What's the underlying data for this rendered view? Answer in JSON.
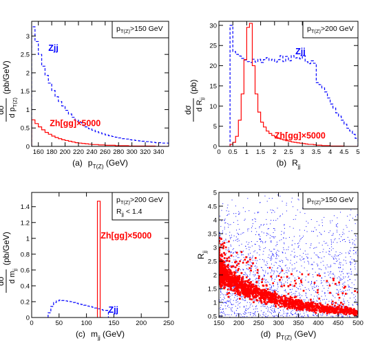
{
  "colors": {
    "zjj": "#0000ff",
    "signal": "#ff0000",
    "axis": "#000000"
  },
  "chart_data": [
    {
      "type": "line",
      "panel_label": "(a)",
      "xlabel": {
        "main": "p",
        "sub": "T(Z)",
        "unit": " (GeV)"
      },
      "ylabel": {
        "num": "dσ",
        "den": "d p",
        "den_sub": "T(Z)",
        "unit": "(pb/GeV)"
      },
      "xlim": [
        150,
        355
      ],
      "ylim": [
        0,
        3.4
      ],
      "xticks": [
        160,
        180,
        200,
        220,
        240,
        260,
        280,
        300,
        320,
        340
      ],
      "yticks": [
        0,
        0.5,
        1,
        1.5,
        2,
        2.5,
        3
      ],
      "legend_box": {
        "main": "p",
        "sub": "T(Z)",
        "rest": ">150 GeV"
      },
      "annotations": [
        {
          "text": "Zjj",
          "color": "blue",
          "at": [
            175,
            2.6
          ]
        },
        {
          "text": "Zh[gg]×5000",
          "color": "red",
          "at": [
            177,
            0.55
          ]
        }
      ],
      "series": [
        {
          "name": "Zjj",
          "style": "dashed",
          "color": "blue",
          "kind": "step",
          "edges": [
            150,
            155,
            160,
            165,
            170,
            175,
            180,
            185,
            190,
            195,
            200,
            205,
            210,
            215,
            220,
            225,
            230,
            235,
            240,
            245,
            250,
            255,
            260,
            265,
            270,
            275,
            280,
            285,
            290,
            295,
            300,
            305,
            310,
            315,
            320,
            325,
            330,
            335,
            340,
            345,
            350,
            355
          ],
          "values": [
            3.25,
            2.85,
            2.5,
            2.18,
            1.93,
            1.72,
            1.52,
            1.35,
            1.22,
            1.1,
            0.98,
            0.88,
            0.79,
            0.71,
            0.65,
            0.58,
            0.53,
            0.48,
            0.44,
            0.4,
            0.37,
            0.34,
            0.31,
            0.29,
            0.27,
            0.25,
            0.23,
            0.21,
            0.2,
            0.18,
            0.17,
            0.16,
            0.15,
            0.14,
            0.13,
            0.12,
            0.11,
            0.1,
            0.1,
            0.09,
            0.09
          ]
        },
        {
          "name": "Zh[gg]×5000",
          "style": "solid",
          "color": "red",
          "kind": "step",
          "edges": [
            150,
            155,
            160,
            165,
            170,
            175,
            180,
            185,
            190,
            195,
            200,
            205,
            210,
            215,
            220,
            225,
            230,
            235,
            240,
            245,
            250,
            255,
            260,
            265,
            270,
            275,
            280,
            285,
            290,
            295,
            300,
            305,
            310,
            315,
            320,
            325,
            330,
            335,
            340,
            345,
            350,
            355
          ],
          "values": [
            0.72,
            0.62,
            0.53,
            0.45,
            0.38,
            0.33,
            0.28,
            0.24,
            0.21,
            0.18,
            0.16,
            0.14,
            0.12,
            0.1,
            0.09,
            0.08,
            0.07,
            0.06,
            0.05,
            0.05,
            0.04,
            0.04,
            0.03,
            0.03,
            0.03,
            0.02,
            0.02,
            0.02,
            0.02,
            0.01,
            0.01,
            0.01,
            0.01,
            0.01,
            0.01,
            0.01,
            0.01,
            0.0,
            0.0,
            0.0,
            0.0
          ]
        }
      ]
    },
    {
      "type": "line",
      "panel_label": "(b)",
      "xlabel": {
        "main": "R",
        "sub": "jj",
        "unit": ""
      },
      "ylabel": {
        "num": "dσ",
        "den": "d R",
        "den_sub": "jj",
        "unit": "(pb)"
      },
      "xlim": [
        0,
        5
      ],
      "ylim": [
        0,
        31
      ],
      "xticks": [
        0,
        0.5,
        1,
        1.5,
        2,
        2.5,
        3,
        3.5,
        4,
        4.5,
        5
      ],
      "yticks": [
        0,
        5,
        10,
        15,
        20,
        25,
        30
      ],
      "legend_box": {
        "main": "p",
        "sub": "T(Z)",
        "rest": ">200 GeV"
      },
      "annotations": [
        {
          "text": "Zjj",
          "color": "blue",
          "at": [
            2.75,
            22.8
          ]
        },
        {
          "text": "Zh[gg]×5000",
          "color": "red",
          "at": [
            2.0,
            2.0
          ]
        }
      ],
      "series": [
        {
          "name": "Zjj",
          "style": "dashed",
          "color": "blue",
          "kind": "step",
          "edges": [
            0.4,
            0.5,
            0.6,
            0.7,
            0.8,
            0.9,
            1.0,
            1.1,
            1.2,
            1.3,
            1.4,
            1.5,
            1.6,
            1.7,
            1.8,
            1.9,
            2.0,
            2.1,
            2.2,
            2.3,
            2.4,
            2.5,
            2.6,
            2.7,
            2.8,
            2.9,
            3.0,
            3.1,
            3.2,
            3.3,
            3.4,
            3.5,
            3.6,
            3.7,
            3.8,
            3.9,
            4.0,
            4.1,
            4.2,
            4.3,
            4.4,
            4.5,
            4.6,
            4.7,
            4.8,
            4.9,
            5.0
          ],
          "values": [
            30.0,
            23.5,
            22.8,
            22.4,
            21.8,
            21.4,
            21.0,
            20.8,
            21.6,
            20.9,
            21.6,
            20.8,
            21.5,
            22.0,
            21.3,
            21.6,
            20.9,
            21.5,
            22.5,
            21.0,
            22.3,
            21.2,
            22.5,
            21.9,
            22.0,
            21.7,
            22.5,
            21.0,
            20.5,
            21.2,
            20.6,
            15.8,
            15.3,
            14.5,
            13.5,
            12.0,
            10.5,
            9.5,
            8.3,
            7.5,
            6.5,
            5.5,
            4.5,
            3.8,
            3.0,
            2.0
          ]
        },
        {
          "name": "Zh[gg]×5000",
          "style": "solid",
          "color": "red",
          "kind": "step",
          "edges": [
            0.4,
            0.5,
            0.6,
            0.7,
            0.8,
            0.9,
            1.0,
            1.1,
            1.2,
            1.3,
            1.4,
            1.5,
            1.6,
            1.7,
            1.8,
            1.9,
            2.0,
            2.1,
            2.2,
            2.3,
            2.4,
            2.5,
            2.6,
            2.7,
            2.8,
            2.9,
            3.0,
            3.1,
            3.2,
            3.3,
            3.4,
            3.5,
            3.6,
            3.7,
            3.8,
            3.9,
            4.0,
            4.1,
            4.2,
            4.3,
            4.4,
            4.5,
            4.6,
            4.7,
            4.8,
            4.9,
            5.0
          ],
          "values": [
            0.5,
            1.0,
            2.5,
            6.5,
            13.0,
            21.5,
            29.5,
            30.5,
            20.0,
            13.0,
            8.5,
            6.0,
            4.8,
            3.8,
            3.2,
            2.7,
            2.4,
            2.0,
            1.8,
            1.6,
            1.4,
            1.3,
            1.1,
            1.0,
            0.9,
            0.8,
            0.7,
            0.6,
            0.5,
            0.5,
            0.4,
            0.3,
            0.3,
            0.2,
            0.2,
            0.2,
            0.1,
            0.1,
            0.1,
            0.1,
            0.1,
            0.0,
            0.0,
            0.0,
            0.0,
            0.0
          ]
        }
      ]
    },
    {
      "type": "line",
      "panel_label": "(c)",
      "xlabel": {
        "main": "m",
        "sub": "jj",
        "unit": " (GeV)"
      },
      "ylabel": {
        "num": "dσ",
        "den": "d m",
        "den_sub": "jj",
        "unit": "(pb/GeV)"
      },
      "xlim": [
        0,
        250
      ],
      "ylim": [
        0,
        1.58
      ],
      "xticks": [
        0,
        50,
        100,
        150,
        200,
        250
      ],
      "yticks": [
        0,
        0.2,
        0.4,
        0.6,
        0.8,
        1,
        1.2,
        1.4
      ],
      "legend_box": {
        "main": "p",
        "sub": "T(Z)",
        "rest": ">200 GeV",
        "line2_main": "R",
        "line2_sub": "jj",
        "line2_rest": " < 1.4"
      },
      "annotations": [
        {
          "text": "Zjj",
          "color": "blue",
          "at": [
            140,
            0.06
          ]
        },
        {
          "text": "Zh[gg]×5000",
          "color": "red",
          "at": [
            126,
            1.0
          ]
        }
      ],
      "series": [
        {
          "name": "Zjj",
          "style": "dashed",
          "color": "blue",
          "kind": "step",
          "edges": [
            30,
            35,
            40,
            45,
            50,
            55,
            60,
            65,
            70,
            75,
            80,
            85,
            90,
            95,
            100,
            105,
            110,
            115,
            120,
            125,
            130,
            135,
            140
          ],
          "values": [
            0.06,
            0.14,
            0.19,
            0.21,
            0.22,
            0.215,
            0.21,
            0.205,
            0.2,
            0.19,
            0.18,
            0.17,
            0.165,
            0.155,
            0.145,
            0.14,
            0.13,
            0.12,
            0.11,
            0.1,
            0.09,
            0.09,
            0.0
          ]
        },
        {
          "name": "Zh[gg]×5000",
          "style": "solid",
          "color": "red",
          "kind": "step",
          "edges": [
            120,
            125,
            130
          ],
          "values": [
            1.47,
            0.0
          ]
        }
      ]
    },
    {
      "type": "scatter",
      "panel_label": "(d)",
      "xlabel": {
        "main": "p",
        "sub": "T(Z)",
        "unit": " (GeV)"
      },
      "ylabel": {
        "main": "R",
        "sub": "jj"
      },
      "xlim": [
        150,
        500
      ],
      "ylim": [
        0.45,
        5
      ],
      "xticks": [
        150,
        200,
        250,
        300,
        350,
        400,
        450,
        500
      ],
      "yticks": [
        0.5,
        1,
        1.5,
        2,
        2.5,
        3,
        3.5,
        4,
        4.5,
        5
      ],
      "legend_box": {
        "main": "p",
        "sub": "T(Z)",
        "rest": ">150 GeV"
      },
      "series": [
        {
          "name": "Zjj",
          "color": "blue",
          "marker": "dot",
          "density_model": {
            "x": [
              150,
              500
            ],
            "y": [
              0.45,
              5
            ]
          }
        },
        {
          "name": "Zh[gg]×5000",
          "color": "red",
          "marker": "square",
          "density_model": {
            "band": "R ≈ 2.6·m/p",
            "m": 125
          }
        }
      ]
    }
  ]
}
